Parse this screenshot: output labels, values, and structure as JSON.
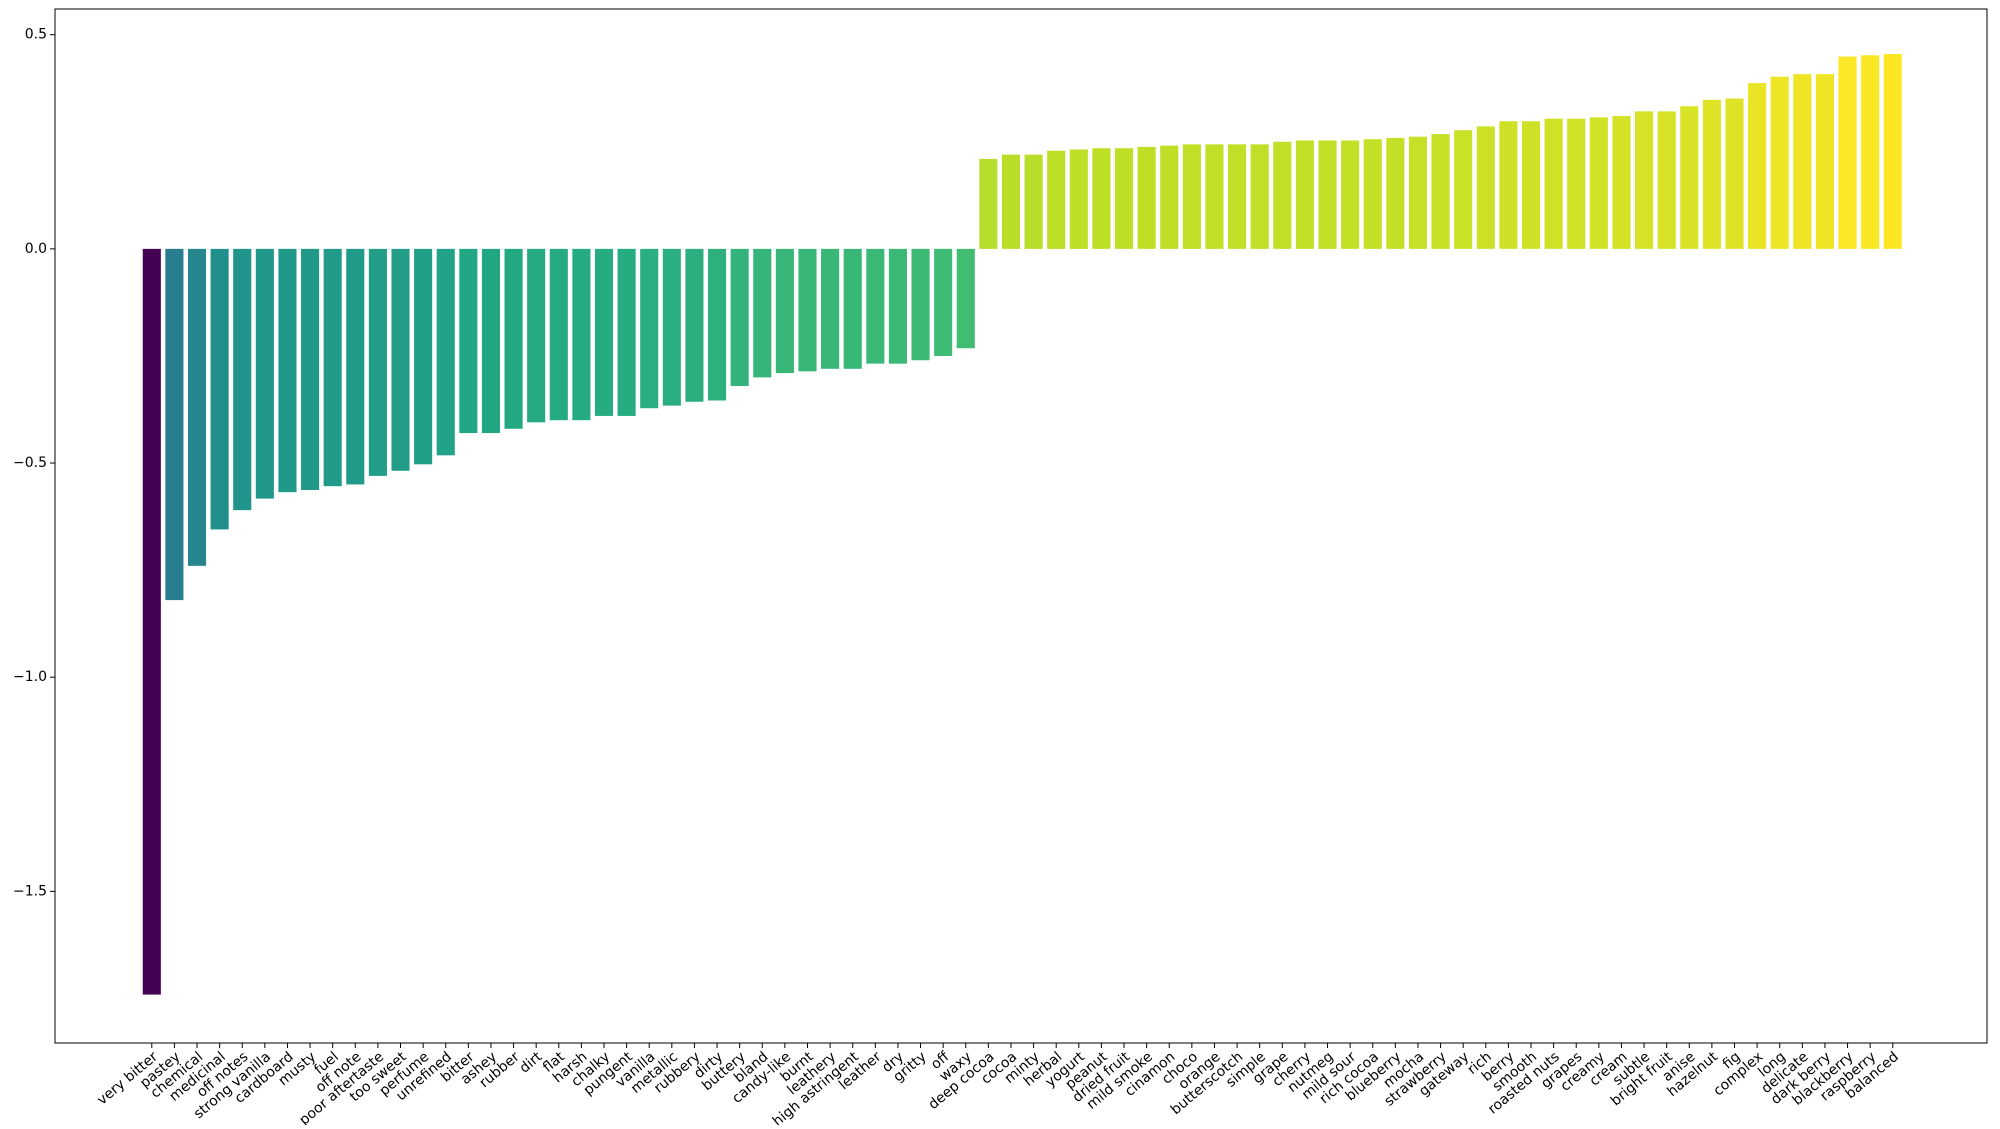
{
  "chart_data": {
    "type": "bar",
    "categories": [
      "very bitter",
      "pastey",
      "chemical",
      "medicinal",
      "off notes",
      "strong vanilla",
      "cardboard",
      "musty",
      "fuel",
      "off note",
      "poor aftertaste",
      "too sweet",
      "perfume",
      "unrefined",
      "bitter",
      "ashey",
      "rubber",
      "dirt",
      "flat",
      "harsh",
      "chalky",
      "pungent",
      "vanilla",
      "metallic",
      "rubbery",
      "dirty",
      "buttery",
      "bland",
      "candy-like",
      "burnt",
      "leathery",
      "high astringent",
      "leather",
      "dry",
      "gritty",
      "off",
      "waxy",
      "deep cocoa",
      "cocoa",
      "minty",
      "herbal",
      "yogurt",
      "peanut",
      "dried fruit",
      "mild smoke",
      "cinamon",
      "choco",
      "orange",
      "butterscotch",
      "simple",
      "grape",
      "cherry",
      "nutmeg",
      "mild sour",
      "rich cocoa",
      "blueberry",
      "mocha",
      "strawberry",
      "gateway",
      "rich",
      "berry",
      "smooth",
      "roasted nuts",
      "grapes",
      "creamy",
      "cream",
      "subtle",
      "bright fruit",
      "anise",
      "hazelnut",
      "fig",
      "complex",
      "long",
      "delicate",
      "dark berry",
      "blackberry",
      "raspberry",
      "balanced"
    ],
    "values": [
      -1.741,
      -0.82,
      -0.74,
      -0.655,
      -0.61,
      -0.583,
      -0.568,
      -0.563,
      -0.554,
      -0.55,
      -0.53,
      -0.518,
      -0.503,
      -0.482,
      -0.43,
      -0.43,
      -0.42,
      -0.405,
      -0.4,
      -0.4,
      -0.39,
      -0.39,
      -0.372,
      -0.366,
      -0.357,
      -0.354,
      -0.32,
      -0.3,
      -0.29,
      -0.286,
      -0.28,
      -0.28,
      -0.268,
      -0.268,
      -0.26,
      -0.25,
      -0.232,
      0.21,
      0.22,
      0.22,
      0.229,
      0.232,
      0.235,
      0.235,
      0.238,
      0.241,
      0.244,
      0.244,
      0.244,
      0.244,
      0.25,
      0.253,
      0.253,
      0.253,
      0.256,
      0.259,
      0.262,
      0.268,
      0.277,
      0.286,
      0.298,
      0.298,
      0.304,
      0.304,
      0.307,
      0.31,
      0.321,
      0.321,
      0.333,
      0.348,
      0.351,
      0.387,
      0.402,
      0.408,
      0.408,
      0.449,
      0.452,
      0.455
    ],
    "colormap": "viridis",
    "ylim": [
      -1.854,
      0.56
    ],
    "yticks": [
      {
        "value": -1.5,
        "label": "−1.5"
      },
      {
        "value": -1.0,
        "label": "−1.0"
      },
      {
        "value": -0.5,
        "label": "−0.5"
      },
      {
        "value": 0.0,
        "label": "0.0"
      },
      {
        "value": 0.5,
        "label": "0.5"
      }
    ],
    "grid": false
  }
}
